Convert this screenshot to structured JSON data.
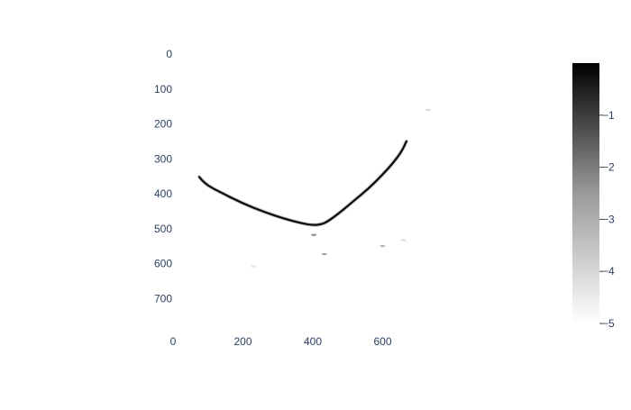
{
  "chart_data": {
    "type": "heatmap",
    "title": "",
    "xlabel": "",
    "ylabel": "",
    "xlim": [
      0,
      800
    ],
    "ylim": [
      800,
      0
    ],
    "x_ticks": [
      0,
      200,
      400,
      600
    ],
    "y_ticks": [
      0,
      100,
      200,
      300,
      400,
      500,
      600,
      700
    ],
    "colorscale": [
      "#ffffff",
      "#000000"
    ],
    "colorbar": {
      "range": [
        -5,
        0
      ],
      "ticks": [
        -1,
        -2,
        -3,
        -4,
        -5
      ],
      "tick_labels": [
        "−1",
        "−2",
        "−3",
        "−4",
        "−5"
      ]
    },
    "grid": false,
    "curve": {
      "value": -0.2,
      "points": [
        [
          75,
          352
        ],
        [
          90,
          372
        ],
        [
          140,
          398
        ],
        [
          200,
          428
        ],
        [
          260,
          452
        ],
        [
          320,
          472
        ],
        [
          370,
          485
        ],
        [
          400,
          490
        ],
        [
          425,
          488
        ],
        [
          445,
          478
        ],
        [
          480,
          452
        ],
        [
          520,
          418
        ],
        [
          560,
          385
        ],
        [
          600,
          345
        ],
        [
          630,
          312
        ],
        [
          655,
          278
        ],
        [
          668,
          250
        ]
      ]
    },
    "specks": [
      {
        "x": 403,
        "y": 518,
        "value": -2.8
      },
      {
        "x": 433,
        "y": 573,
        "value": -3.2
      },
      {
        "x": 600,
        "y": 550,
        "value": -3.6
      },
      {
        "x": 660,
        "y": 533,
        "value": -4.3
      },
      {
        "x": 730,
        "y": 160,
        "value": -4.3
      },
      {
        "x": 230,
        "y": 608,
        "value": -4.5
      }
    ]
  }
}
